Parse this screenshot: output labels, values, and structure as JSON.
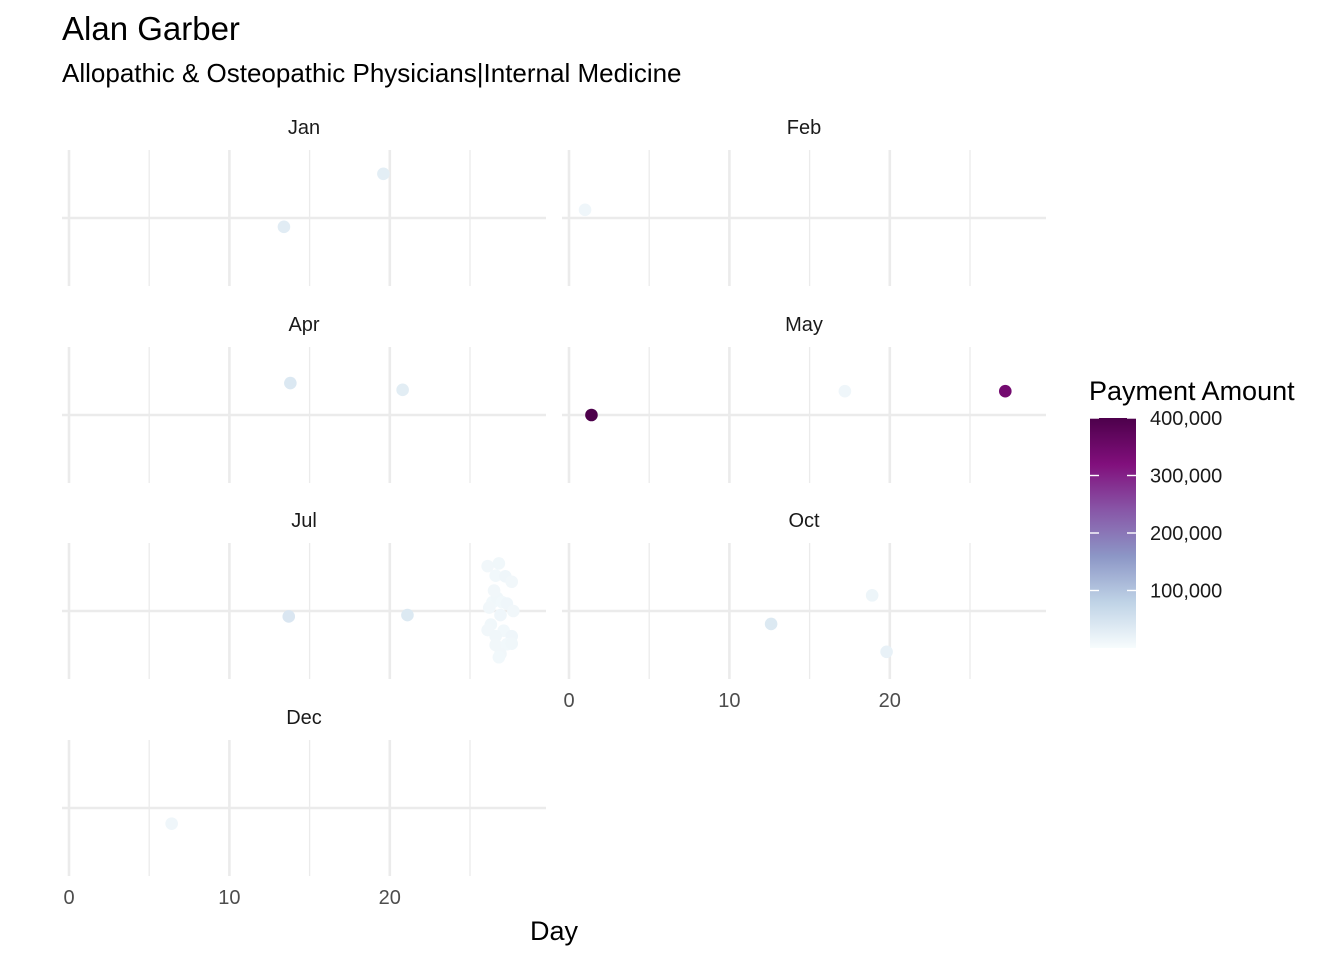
{
  "chart_data": {
    "type": "scatter",
    "title": "Alan Garber",
    "subtitle": "Allopathic & Osteopathic Physicians|Internal Medicine",
    "xlabel": "Day",
    "ylabel": "",
    "xlim": [
      0,
      29
    ],
    "x_ticks": [
      0,
      10,
      20
    ],
    "legend": {
      "title": "Payment Amount",
      "placement": "right",
      "min": 0,
      "max": 400000,
      "breaks": [
        100000,
        200000,
        300000,
        400000
      ],
      "labels": [
        "100,000",
        "200,000",
        "300,000",
        "400,000"
      ],
      "colors": [
        "#f7fcfd",
        "#bfd3e6",
        "#8c96c6",
        "#8856a7",
        "#810f7c",
        "#4d004b"
      ]
    },
    "facets": [
      {
        "name": "Jan",
        "points": [
          {
            "day": 13.4,
            "jitter": -0.13,
            "amount": 32000
          },
          {
            "day": 19.6,
            "jitter": 0.65,
            "amount": 28000
          }
        ]
      },
      {
        "name": "Feb",
        "points": [
          {
            "day": 1.0,
            "jitter": 0.12,
            "amount": 12000
          }
        ]
      },
      {
        "name": "Apr",
        "points": [
          {
            "day": 13.8,
            "jitter": 0.47,
            "amount": 40000
          },
          {
            "day": 20.8,
            "jitter": 0.37,
            "amount": 30000
          }
        ]
      },
      {
        "name": "May",
        "points": [
          {
            "day": 1.4,
            "jitter": 0.0,
            "amount": 400000
          },
          {
            "day": 17.2,
            "jitter": 0.35,
            "amount": 12000
          },
          {
            "day": 27.2,
            "jitter": 0.35,
            "amount": 340000
          }
        ]
      },
      {
        "name": "Jul",
        "points": [
          {
            "day": 13.7,
            "jitter": -0.08,
            "amount": 42000
          },
          {
            "day": 21.1,
            "jitter": -0.06,
            "amount": 38000
          },
          {
            "day": 26.1,
            "jitter": 0.66,
            "amount": 9000
          },
          {
            "day": 26.6,
            "jitter": 0.52,
            "amount": 8000
          },
          {
            "day": 26.8,
            "jitter": 0.7,
            "amount": 10000
          },
          {
            "day": 27.2,
            "jitter": 0.51,
            "amount": 11000
          },
          {
            "day": 27.6,
            "jitter": 0.43,
            "amount": 9000
          },
          {
            "day": 26.4,
            "jitter": 0.13,
            "amount": 8000
          },
          {
            "day": 26.7,
            "jitter": 0.19,
            "amount": 10000
          },
          {
            "day": 26.2,
            "jitter": 0.05,
            "amount": 9000
          },
          {
            "day": 27.0,
            "jitter": 0.13,
            "amount": 8000
          },
          {
            "day": 27.3,
            "jitter": 0.11,
            "amount": 11000
          },
          {
            "day": 27.7,
            "jitter": 0.0,
            "amount": 9000
          },
          {
            "day": 26.9,
            "jitter": -0.06,
            "amount": 12000
          },
          {
            "day": 26.3,
            "jitter": -0.2,
            "amount": 10000
          },
          {
            "day": 26.1,
            "jitter": -0.28,
            "amount": 9000
          },
          {
            "day": 27.1,
            "jitter": -0.29,
            "amount": 8000
          },
          {
            "day": 26.6,
            "jitter": -0.37,
            "amount": 10000
          },
          {
            "day": 27.6,
            "jitter": -0.37,
            "amount": 11000
          },
          {
            "day": 26.6,
            "jitter": -0.5,
            "amount": 9000
          },
          {
            "day": 27.3,
            "jitter": -0.49,
            "amount": 8000
          },
          {
            "day": 27.6,
            "jitter": -0.48,
            "amount": 10000
          },
          {
            "day": 26.9,
            "jitter": -0.63,
            "amount": 9000
          },
          {
            "day": 26.8,
            "jitter": -0.68,
            "amount": 8000
          },
          {
            "day": 26.5,
            "jitter": 0.3,
            "amount": 9000
          }
        ]
      },
      {
        "name": "Oct",
        "points": [
          {
            "day": 12.6,
            "jitter": -0.19,
            "amount": 38000
          },
          {
            "day": 18.9,
            "jitter": 0.23,
            "amount": 14000
          },
          {
            "day": 19.8,
            "jitter": -0.6,
            "amount": 22000
          }
        ]
      },
      {
        "name": "Dec",
        "points": [
          {
            "day": 6.4,
            "jitter": -0.23,
            "amount": 12000
          }
        ]
      }
    ]
  }
}
